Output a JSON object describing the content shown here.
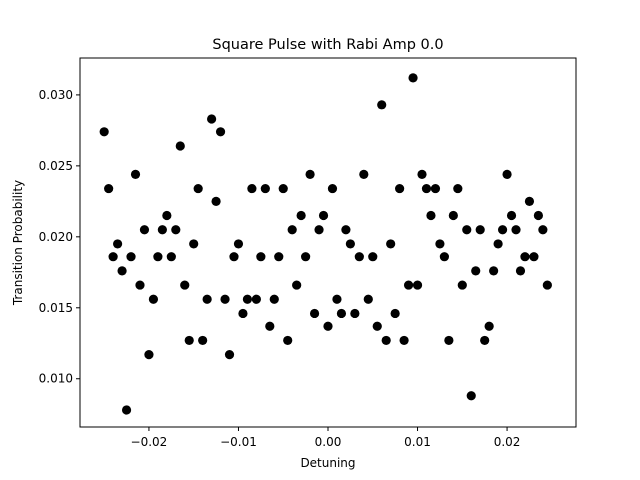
{
  "chart_data": {
    "type": "scatter",
    "title": "Square Pulse with Rabi Amp 0.0",
    "xlabel": "Detuning",
    "ylabel": "Transition Probability",
    "xlim": [
      -0.0277,
      0.0277
    ],
    "ylim": [
      0.0066,
      0.0326
    ],
    "x_ticks": [
      -0.02,
      -0.01,
      0.0,
      0.01,
      0.02
    ],
    "x_tick_labels": [
      "−0.02",
      "−0.01",
      "0.00",
      "0.01",
      "0.02"
    ],
    "y_ticks": [
      0.01,
      0.015,
      0.02,
      0.025,
      0.03
    ],
    "y_tick_labels": [
      "0.010",
      "0.015",
      "0.020",
      "0.025",
      "0.030"
    ],
    "grid": false,
    "marker_color": "#000000",
    "points": [
      {
        "x": -0.025,
        "y": 0.0274
      },
      {
        "x": -0.0245,
        "y": 0.0234
      },
      {
        "x": -0.024,
        "y": 0.0186
      },
      {
        "x": -0.0235,
        "y": 0.0195
      },
      {
        "x": -0.023,
        "y": 0.0176
      },
      {
        "x": -0.0225,
        "y": 0.0078
      },
      {
        "x": -0.022,
        "y": 0.0186
      },
      {
        "x": -0.0215,
        "y": 0.0244
      },
      {
        "x": -0.021,
        "y": 0.0166
      },
      {
        "x": -0.0205,
        "y": 0.0205
      },
      {
        "x": -0.02,
        "y": 0.0117
      },
      {
        "x": -0.0195,
        "y": 0.0156
      },
      {
        "x": -0.019,
        "y": 0.0186
      },
      {
        "x": -0.0185,
        "y": 0.0205
      },
      {
        "x": -0.018,
        "y": 0.0215
      },
      {
        "x": -0.0175,
        "y": 0.0186
      },
      {
        "x": -0.017,
        "y": 0.0205
      },
      {
        "x": -0.0165,
        "y": 0.0264
      },
      {
        "x": -0.016,
        "y": 0.0166
      },
      {
        "x": -0.0155,
        "y": 0.0127
      },
      {
        "x": -0.015,
        "y": 0.0195
      },
      {
        "x": -0.0145,
        "y": 0.0234
      },
      {
        "x": -0.014,
        "y": 0.0127
      },
      {
        "x": -0.0135,
        "y": 0.0156
      },
      {
        "x": -0.013,
        "y": 0.0283
      },
      {
        "x": -0.0125,
        "y": 0.0225
      },
      {
        "x": -0.012,
        "y": 0.0274
      },
      {
        "x": -0.0115,
        "y": 0.0156
      },
      {
        "x": -0.011,
        "y": 0.0117
      },
      {
        "x": -0.0105,
        "y": 0.0186
      },
      {
        "x": -0.01,
        "y": 0.0195
      },
      {
        "x": -0.0095,
        "y": 0.0146
      },
      {
        "x": -0.009,
        "y": 0.0156
      },
      {
        "x": -0.0085,
        "y": 0.0234
      },
      {
        "x": -0.008,
        "y": 0.0156
      },
      {
        "x": -0.0075,
        "y": 0.0186
      },
      {
        "x": -0.007,
        "y": 0.0234
      },
      {
        "x": -0.0065,
        "y": 0.0137
      },
      {
        "x": -0.006,
        "y": 0.0156
      },
      {
        "x": -0.0055,
        "y": 0.0186
      },
      {
        "x": -0.005,
        "y": 0.0234
      },
      {
        "x": -0.0045,
        "y": 0.0127
      },
      {
        "x": -0.004,
        "y": 0.0205
      },
      {
        "x": -0.0035,
        "y": 0.0166
      },
      {
        "x": -0.003,
        "y": 0.0215
      },
      {
        "x": -0.0025,
        "y": 0.0186
      },
      {
        "x": -0.002,
        "y": 0.0244
      },
      {
        "x": -0.0015,
        "y": 0.0146
      },
      {
        "x": -0.001,
        "y": 0.0205
      },
      {
        "x": -0.0005,
        "y": 0.0215
      },
      {
        "x": 0.0,
        "y": 0.0137
      },
      {
        "x": 0.0005,
        "y": 0.0234
      },
      {
        "x": 0.001,
        "y": 0.0156
      },
      {
        "x": 0.0015,
        "y": 0.0146
      },
      {
        "x": 0.002,
        "y": 0.0205
      },
      {
        "x": 0.0025,
        "y": 0.0195
      },
      {
        "x": 0.003,
        "y": 0.0146
      },
      {
        "x": 0.0035,
        "y": 0.0186
      },
      {
        "x": 0.004,
        "y": 0.0244
      },
      {
        "x": 0.0045,
        "y": 0.0156
      },
      {
        "x": 0.005,
        "y": 0.0186
      },
      {
        "x": 0.0055,
        "y": 0.0137
      },
      {
        "x": 0.006,
        "y": 0.0293
      },
      {
        "x": 0.0065,
        "y": 0.0127
      },
      {
        "x": 0.007,
        "y": 0.0195
      },
      {
        "x": 0.0075,
        "y": 0.0146
      },
      {
        "x": 0.008,
        "y": 0.0234
      },
      {
        "x": 0.0085,
        "y": 0.0127
      },
      {
        "x": 0.009,
        "y": 0.0166
      },
      {
        "x": 0.0095,
        "y": 0.0312
      },
      {
        "x": 0.01,
        "y": 0.0166
      },
      {
        "x": 0.0105,
        "y": 0.0244
      },
      {
        "x": 0.011,
        "y": 0.0234
      },
      {
        "x": 0.0115,
        "y": 0.0215
      },
      {
        "x": 0.012,
        "y": 0.0234
      },
      {
        "x": 0.0125,
        "y": 0.0195
      },
      {
        "x": 0.013,
        "y": 0.0186
      },
      {
        "x": 0.0135,
        "y": 0.0127
      },
      {
        "x": 0.014,
        "y": 0.0215
      },
      {
        "x": 0.0145,
        "y": 0.0234
      },
      {
        "x": 0.015,
        "y": 0.0166
      },
      {
        "x": 0.0155,
        "y": 0.0205
      },
      {
        "x": 0.016,
        "y": 0.0088
      },
      {
        "x": 0.0165,
        "y": 0.0176
      },
      {
        "x": 0.017,
        "y": 0.0205
      },
      {
        "x": 0.0175,
        "y": 0.0127
      },
      {
        "x": 0.018,
        "y": 0.0137
      },
      {
        "x": 0.0185,
        "y": 0.0176
      },
      {
        "x": 0.019,
        "y": 0.0195
      },
      {
        "x": 0.0195,
        "y": 0.0205
      },
      {
        "x": 0.02,
        "y": 0.0244
      },
      {
        "x": 0.0205,
        "y": 0.0215
      },
      {
        "x": 0.021,
        "y": 0.0205
      },
      {
        "x": 0.0215,
        "y": 0.0176
      },
      {
        "x": 0.022,
        "y": 0.0186
      },
      {
        "x": 0.0225,
        "y": 0.0225
      },
      {
        "x": 0.023,
        "y": 0.0186
      },
      {
        "x": 0.0235,
        "y": 0.0215
      },
      {
        "x": 0.024,
        "y": 0.0205
      },
      {
        "x": 0.0245,
        "y": 0.0166
      }
    ]
  }
}
